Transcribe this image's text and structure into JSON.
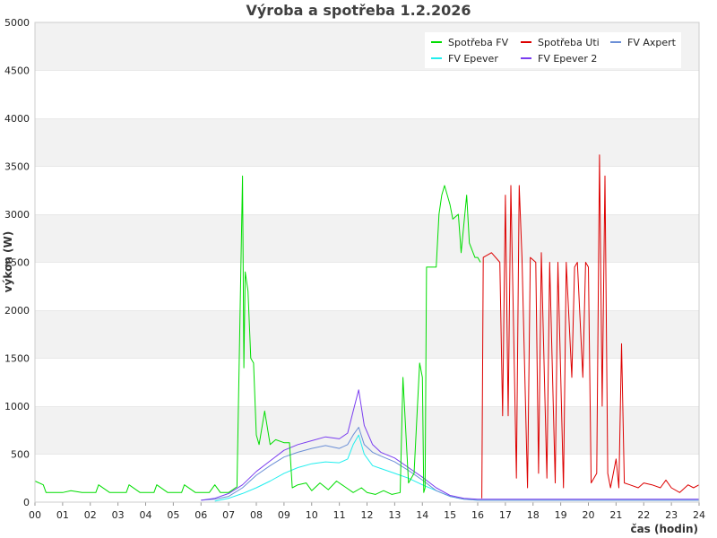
{
  "chart_data": {
    "type": "line",
    "title": "Výroba a spotřeba 1.2.2026",
    "xlabel": "čas (hodin)",
    "ylabel": "výkon (W)",
    "xlim": [
      0,
      24
    ],
    "ylim": [
      0,
      5000
    ],
    "x_ticks": [
      "00",
      "01",
      "02",
      "03",
      "04",
      "05",
      "06",
      "07",
      "08",
      "09",
      "10",
      "11",
      "12",
      "13",
      "14",
      "15",
      "16",
      "17",
      "18",
      "19",
      "20",
      "21",
      "22",
      "23",
      "24"
    ],
    "y_ticks": [
      "0",
      "500",
      "1000",
      "1500",
      "2000",
      "2500",
      "3000",
      "3500",
      "4000",
      "4500",
      "5000"
    ],
    "grid": "horizontal bands",
    "legend_position": "top-right",
    "series": [
      {
        "name": "Spotřeba FV",
        "color": "#00dd00",
        "points": [
          [
            0,
            220
          ],
          [
            0.3,
            180
          ],
          [
            0.4,
            100
          ],
          [
            1.0,
            100
          ],
          [
            1.3,
            120
          ],
          [
            1.7,
            100
          ],
          [
            2.2,
            100
          ],
          [
            2.3,
            180
          ],
          [
            2.7,
            100
          ],
          [
            3.3,
            100
          ],
          [
            3.4,
            180
          ],
          [
            3.8,
            100
          ],
          [
            4.3,
            100
          ],
          [
            4.4,
            180
          ],
          [
            4.8,
            100
          ],
          [
            5.3,
            100
          ],
          [
            5.4,
            180
          ],
          [
            5.8,
            100
          ],
          [
            6.3,
            100
          ],
          [
            6.5,
            180
          ],
          [
            6.7,
            100
          ],
          [
            7.0,
            100
          ],
          [
            7.3,
            160
          ],
          [
            7.5,
            3400
          ],
          [
            7.55,
            1400
          ],
          [
            7.6,
            2400
          ],
          [
            7.7,
            2200
          ],
          [
            7.8,
            1500
          ],
          [
            7.9,
            1450
          ],
          [
            8.0,
            700
          ],
          [
            8.1,
            600
          ],
          [
            8.3,
            950
          ],
          [
            8.5,
            600
          ],
          [
            8.7,
            650
          ],
          [
            9.0,
            620
          ],
          [
            9.2,
            620
          ],
          [
            9.3,
            150
          ],
          [
            9.5,
            180
          ],
          [
            9.8,
            200
          ],
          [
            10.0,
            120
          ],
          [
            10.3,
            200
          ],
          [
            10.6,
            130
          ],
          [
            10.9,
            220
          ],
          [
            11.2,
            160
          ],
          [
            11.5,
            100
          ],
          [
            11.8,
            150
          ],
          [
            12.0,
            100
          ],
          [
            12.3,
            80
          ],
          [
            12.6,
            120
          ],
          [
            12.9,
            80
          ],
          [
            13.2,
            100
          ],
          [
            13.3,
            1300
          ],
          [
            13.5,
            200
          ],
          [
            13.7,
            300
          ],
          [
            13.9,
            1450
          ],
          [
            14.0,
            1300
          ],
          [
            14.05,
            100
          ],
          [
            14.1,
            150
          ],
          [
            14.15,
            2450
          ],
          [
            14.5,
            2450
          ],
          [
            14.6,
            3000
          ],
          [
            14.7,
            3200
          ],
          [
            14.8,
            3300
          ],
          [
            15.0,
            3100
          ],
          [
            15.1,
            2950
          ],
          [
            15.3,
            3000
          ],
          [
            15.4,
            2600
          ],
          [
            15.6,
            3200
          ],
          [
            15.7,
            2700
          ],
          [
            15.9,
            2550
          ],
          [
            16.0,
            2550
          ],
          [
            16.1,
            2500
          ]
        ]
      },
      {
        "name": "Spotřeba Uti",
        "color": "#dd0000",
        "points": [
          [
            16.15,
            40
          ],
          [
            16.2,
            2550
          ],
          [
            16.5,
            2600
          ],
          [
            16.8,
            2500
          ],
          [
            16.9,
            900
          ],
          [
            17.0,
            3200
          ],
          [
            17.1,
            900
          ],
          [
            17.2,
            3300
          ],
          [
            17.4,
            250
          ],
          [
            17.5,
            3300
          ],
          [
            17.6,
            2550
          ],
          [
            17.8,
            150
          ],
          [
            17.9,
            2550
          ],
          [
            18.1,
            2500
          ],
          [
            18.2,
            300
          ],
          [
            18.3,
            2600
          ],
          [
            18.5,
            250
          ],
          [
            18.6,
            2500
          ],
          [
            18.8,
            200
          ],
          [
            18.9,
            2500
          ],
          [
            19.1,
            150
          ],
          [
            19.2,
            2500
          ],
          [
            19.4,
            1300
          ],
          [
            19.5,
            2450
          ],
          [
            19.6,
            2500
          ],
          [
            19.8,
            1300
          ],
          [
            19.9,
            2500
          ],
          [
            20.0,
            2450
          ],
          [
            20.1,
            200
          ],
          [
            20.3,
            300
          ],
          [
            20.4,
            3620
          ],
          [
            20.5,
            1000
          ],
          [
            20.6,
            3400
          ],
          [
            20.7,
            300
          ],
          [
            20.8,
            150
          ],
          [
            21.0,
            450
          ],
          [
            21.1,
            150
          ],
          [
            21.2,
            1650
          ],
          [
            21.3,
            200
          ],
          [
            21.5,
            180
          ],
          [
            21.8,
            150
          ],
          [
            22.0,
            200
          ],
          [
            22.3,
            180
          ],
          [
            22.6,
            150
          ],
          [
            22.8,
            230
          ],
          [
            23.0,
            150
          ],
          [
            23.3,
            100
          ],
          [
            23.6,
            180
          ],
          [
            23.8,
            150
          ],
          [
            24.0,
            180
          ]
        ]
      },
      {
        "name": "FV Axpert",
        "color": "#6b8fd6",
        "points": [
          [
            6.0,
            20
          ],
          [
            6.5,
            30
          ],
          [
            7.0,
            60
          ],
          [
            7.5,
            150
          ],
          [
            8.0,
            280
          ],
          [
            8.5,
            380
          ],
          [
            9.0,
            470
          ],
          [
            9.5,
            520
          ],
          [
            10.0,
            560
          ],
          [
            10.5,
            590
          ],
          [
            11.0,
            560
          ],
          [
            11.3,
            600
          ],
          [
            11.5,
            700
          ],
          [
            11.7,
            780
          ],
          [
            11.9,
            600
          ],
          [
            12.2,
            520
          ],
          [
            12.5,
            480
          ],
          [
            13.0,
            420
          ],
          [
            13.5,
            330
          ],
          [
            14.0,
            230
          ],
          [
            14.5,
            120
          ],
          [
            15.0,
            60
          ],
          [
            15.5,
            30
          ],
          [
            16.0,
            20
          ],
          [
            24.0,
            20
          ]
        ]
      },
      {
        "name": "FV Epever",
        "color": "#22eeee",
        "points": [
          [
            6.5,
            10
          ],
          [
            7.0,
            40
          ],
          [
            7.5,
            90
          ],
          [
            8.0,
            150
          ],
          [
            8.5,
            220
          ],
          [
            9.0,
            300
          ],
          [
            9.5,
            360
          ],
          [
            10.0,
            400
          ],
          [
            10.5,
            420
          ],
          [
            11.0,
            410
          ],
          [
            11.3,
            450
          ],
          [
            11.5,
            600
          ],
          [
            11.7,
            700
          ],
          [
            11.9,
            500
          ],
          [
            12.2,
            380
          ],
          [
            12.5,
            350
          ],
          [
            13.0,
            300
          ],
          [
            13.5,
            250
          ],
          [
            14.0,
            180
          ],
          [
            14.5,
            120
          ],
          [
            15.0,
            60
          ],
          [
            15.5,
            30
          ],
          [
            16.0,
            20
          ],
          [
            24.0,
            20
          ]
        ]
      },
      {
        "name": "FV Epever 2",
        "color": "#7a3df0",
        "points": [
          [
            6.0,
            20
          ],
          [
            6.5,
            40
          ],
          [
            7.0,
            90
          ],
          [
            7.5,
            180
          ],
          [
            8.0,
            320
          ],
          [
            8.5,
            430
          ],
          [
            9.0,
            540
          ],
          [
            9.5,
            600
          ],
          [
            10.0,
            640
          ],
          [
            10.5,
            680
          ],
          [
            11.0,
            660
          ],
          [
            11.3,
            720
          ],
          [
            11.5,
            950
          ],
          [
            11.7,
            1170
          ],
          [
            11.9,
            800
          ],
          [
            12.2,
            600
          ],
          [
            12.5,
            520
          ],
          [
            13.0,
            460
          ],
          [
            13.5,
            360
          ],
          [
            14.0,
            260
          ],
          [
            14.5,
            150
          ],
          [
            15.0,
            70
          ],
          [
            15.5,
            40
          ],
          [
            16.0,
            30
          ],
          [
            24.0,
            30
          ]
        ]
      }
    ]
  }
}
